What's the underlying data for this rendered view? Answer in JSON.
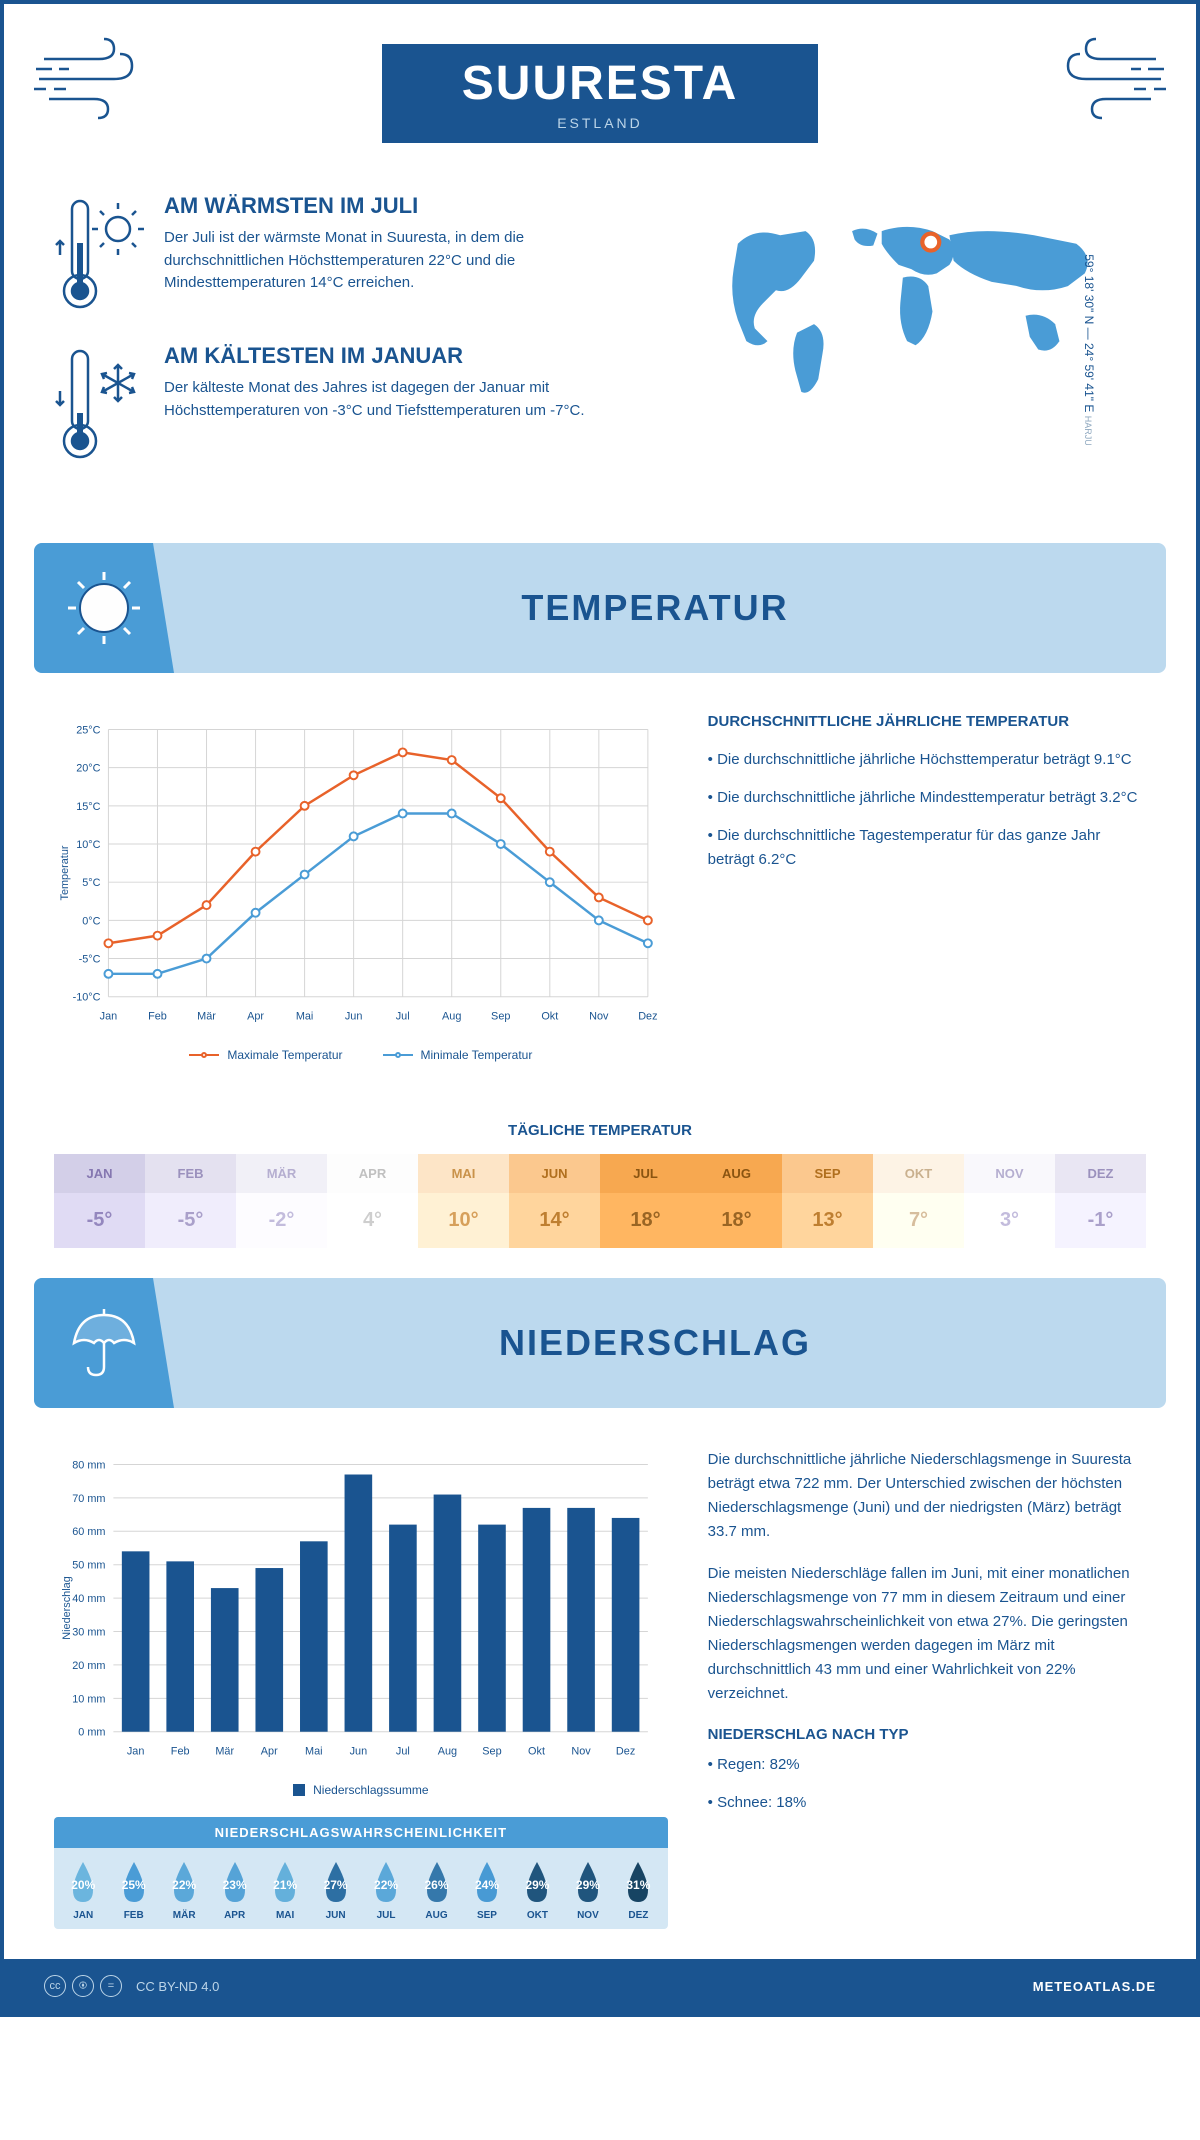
{
  "header": {
    "title": "SUURESTA",
    "country": "ESTLAND"
  },
  "coords": {
    "text": "59° 18' 30\" N — 24° 59' 41\" E",
    "region": "HARJU"
  },
  "facts": {
    "warm": {
      "title": "AM WÄRMSTEN IM JULI",
      "text": "Der Juli ist der wärmste Monat in Suuresta, in dem die durchschnittlichen Höchsttemperaturen 22°C und die Mindesttemperaturen 14°C erreichen."
    },
    "cold": {
      "title": "AM KÄLTESTEN IM JANUAR",
      "text": "Der kälteste Monat des Jahres ist dagegen der Januar mit Höchsttemperaturen von -3°C und Tiefsttemperaturen um -7°C."
    }
  },
  "temperature": {
    "section_title": "TEMPERATUR",
    "info_title": "DURCHSCHNITTLICHE JÄHRLICHE TEMPERATUR",
    "bullets": [
      "• Die durchschnittliche jährliche Höchsttemperatur beträgt 9.1°C",
      "• Die durchschnittliche jährliche Mindesttemperatur beträgt 3.2°C",
      "• Die durchschnittliche Tagestemperatur für das ganze Jahr beträgt 6.2°C"
    ],
    "chart": {
      "type": "line",
      "months": [
        "Jan",
        "Feb",
        "Mär",
        "Apr",
        "Mai",
        "Jun",
        "Jul",
        "Aug",
        "Sep",
        "Okt",
        "Nov",
        "Dez"
      ],
      "max_temp": [
        -3,
        -2,
        2,
        9,
        15,
        19,
        22,
        21,
        16,
        9,
        3,
        0
      ],
      "min_temp": [
        -7,
        -7,
        -5,
        1,
        6,
        11,
        14,
        14,
        10,
        5,
        0,
        -3
      ],
      "max_color": "#e8622a",
      "min_color": "#4a9cd6",
      "ylim": [
        -10,
        25
      ],
      "ytick_step": 5,
      "ylabel": "Temperatur",
      "grid_color": "#d5d5d5",
      "legend_max": "Maximale Temperatur",
      "legend_min": "Minimale Temperatur",
      "background": "#ffffff"
    },
    "daily_title": "TÄGLICHE TEMPERATUR",
    "daily": {
      "months": [
        "JAN",
        "FEB",
        "MÄR",
        "APR",
        "MAI",
        "JUN",
        "JUL",
        "AUG",
        "SEP",
        "OKT",
        "NOV",
        "DEZ"
      ],
      "values": [
        "-5°",
        "-5°",
        "-2°",
        "4°",
        "10°",
        "14°",
        "18°",
        "18°",
        "13°",
        "7°",
        "3°",
        "-1°"
      ],
      "header_colors": [
        "#d3cfe8",
        "#e4e1f0",
        "#f1f0f7",
        "#fdfdfd",
        "#fde5c7",
        "#fbc88e",
        "#f7a850",
        "#f7a850",
        "#fbc88e",
        "#fdf3e5",
        "#f9f8fc",
        "#e9e6f3"
      ],
      "text_colors": [
        "#8577b0",
        "#9b91bd",
        "#b5aed0",
        "#c0c0c0",
        "#c9924a",
        "#b06f1e",
        "#8a5411",
        "#8a5411",
        "#b06f1e",
        "#c9b08e",
        "#b5aed0",
        "#9b91bd"
      ]
    }
  },
  "precip": {
    "section_title": "NIEDERSCHLAG",
    "chart": {
      "type": "bar",
      "months": [
        "Jan",
        "Feb",
        "Mär",
        "Apr",
        "Mai",
        "Jun",
        "Jul",
        "Aug",
        "Sep",
        "Okt",
        "Nov",
        "Dez"
      ],
      "values": [
        54,
        51,
        43,
        49,
        57,
        77,
        62,
        71,
        62,
        67,
        67,
        64
      ],
      "ylim": [
        0,
        80
      ],
      "ytick_step": 10,
      "ylabel": "Niederschlag",
      "bar_color": "#1a5490",
      "grid_color": "#d5d5d5",
      "legend": "Niederschlagssumme",
      "y_suffix": " mm"
    },
    "paragraphs": [
      "Die durchschnittliche jährliche Niederschlagsmenge in Suuresta beträgt etwa 722 mm. Der Unterschied zwischen der höchsten Niederschlagsmenge (Juni) und der niedrigsten (März) beträgt 33.7 mm.",
      "Die meisten Niederschläge fallen im Juni, mit einer monatlichen Niederschlagsmenge von 77 mm in diesem Zeitraum und einer Niederschlagswahrscheinlichkeit von etwa 27%. Die geringsten Niederschlagsmengen werden dagegen im März mit durchschnittlich 43 mm und einer Wahrlichkeit von 22% verzeichnet."
    ],
    "type_title": "NIEDERSCHLAG NACH TYP",
    "types": [
      "• Regen: 82%",
      "• Schnee: 18%"
    ],
    "prob": {
      "title": "NIEDERSCHLAGSWAHRSCHEINLICHKEIT",
      "months": [
        "JAN",
        "FEB",
        "MÄR",
        "APR",
        "MAI",
        "JUN",
        "JUL",
        "AUG",
        "SEP",
        "OKT",
        "NOV",
        "DEZ"
      ],
      "values": [
        "20%",
        "25%",
        "22%",
        "23%",
        "21%",
        "27%",
        "22%",
        "26%",
        "24%",
        "29%",
        "29%",
        "31%"
      ],
      "colors": [
        "#6bb5de",
        "#4a9cd6",
        "#5ba8d9",
        "#55a3d7",
        "#64b0db",
        "#2d6fa3",
        "#5ba8d9",
        "#3578ab",
        "#489ad4",
        "#20557d",
        "#20557d",
        "#174463"
      ]
    }
  },
  "footer": {
    "license": "CC BY-ND 4.0",
    "brand": "METEOATLAS.DE"
  },
  "colors": {
    "primary": "#1a5490",
    "light_blue": "#bcd9ee",
    "accent_blue": "#4a9cd6"
  }
}
